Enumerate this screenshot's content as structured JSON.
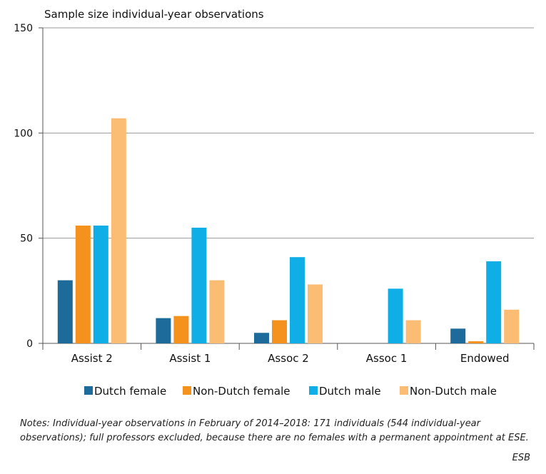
{
  "chart_data": {
    "type": "bar",
    "title": "Sample size individual-year observations",
    "categories": [
      "Assist 2",
      "Assist 1",
      "Assoc 2",
      "Assoc 1",
      "Endowed"
    ],
    "series": [
      {
        "name": "Dutch female",
        "color": "#1c6b9a",
        "values": [
          30,
          12,
          5,
          0,
          7
        ]
      },
      {
        "name": "Non-Dutch female",
        "color": "#f5921e",
        "values": [
          56,
          13,
          11,
          0,
          1
        ]
      },
      {
        "name": "Dutch male",
        "color": "#10aee6",
        "values": [
          56,
          55,
          41,
          26,
          39
        ]
      },
      {
        "name": "Non-Dutch male",
        "color": "#fbbc73",
        "values": [
          107,
          30,
          28,
          11,
          16
        ]
      }
    ],
    "ylim": [
      0,
      150
    ],
    "yticks": [
      0,
      50,
      100,
      150
    ],
    "grid": true,
    "legend_position": "bottom"
  },
  "notes": "Notes: Individual-year observations in February of 2014–2018: 171 individuals (544 individual-year observations); full professors excluded, because there are no females with a permanent appointment at ESE.",
  "source": "ESB"
}
